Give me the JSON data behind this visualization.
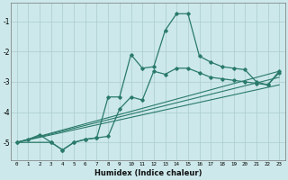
{
  "xlabel": "Humidex (Indice chaleur)",
  "background_color": "#cce8ea",
  "grid_color": "#aacccc",
  "line_color": "#2a7a6a",
  "xlim": [
    -0.5,
    23.5
  ],
  "ylim": [
    -5.6,
    -0.4
  ],
  "xticks": [
    0,
    1,
    2,
    3,
    4,
    5,
    6,
    7,
    8,
    9,
    10,
    11,
    12,
    13,
    14,
    15,
    16,
    17,
    18,
    19,
    20,
    21,
    22,
    23
  ],
  "yticks": [
    -5,
    -4,
    -3,
    -2,
    -1
  ],
  "line1_x": [
    0,
    1,
    2,
    3,
    4,
    5,
    6,
    7,
    8,
    9,
    10,
    11,
    12,
    13,
    14,
    15,
    16,
    17,
    18,
    19,
    20,
    21,
    22,
    23
  ],
  "line1_y": [
    -5.0,
    -4.9,
    -4.75,
    -5.0,
    -5.25,
    -5.0,
    -4.9,
    -4.85,
    -3.5,
    -3.5,
    -2.1,
    -2.55,
    -2.5,
    -1.3,
    -0.75,
    -0.75,
    -2.15,
    -2.35,
    -2.5,
    -2.55,
    -2.6,
    -3.0,
    -3.1,
    -2.7
  ],
  "line2_x": [
    0,
    3,
    4,
    5,
    6,
    7,
    8,
    9,
    10,
    11,
    12,
    13,
    14,
    15,
    16,
    17,
    18,
    19,
    20,
    21,
    22,
    23
  ],
  "line2_y": [
    -5.0,
    -5.0,
    -5.25,
    -5.0,
    -4.9,
    -4.85,
    -4.8,
    -3.9,
    -3.5,
    -3.6,
    -2.65,
    -2.75,
    -2.55,
    -2.55,
    -2.7,
    -2.85,
    -2.9,
    -2.95,
    -3.0,
    -3.05,
    -3.1,
    -2.65
  ],
  "line3_x": [
    0,
    23
  ],
  "line3_y": [
    -5.0,
    -2.65
  ],
  "line4_x": [
    0,
    23
  ],
  "line4_y": [
    -5.0,
    -3.1
  ],
  "line5_x": [
    0,
    23
  ],
  "line5_y": [
    -5.0,
    -2.85
  ]
}
